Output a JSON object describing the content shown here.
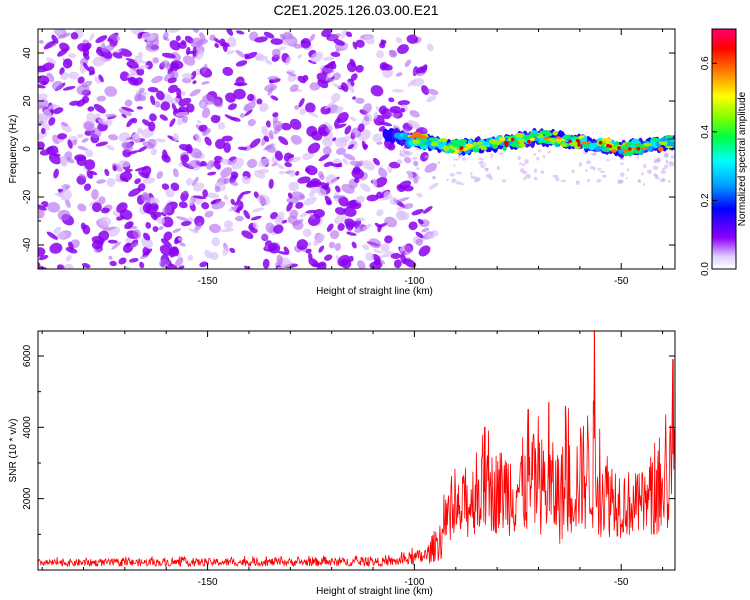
{
  "page": {
    "title": "C2E1.2025.126.03.00.E21"
  },
  "chart_data": [
    {
      "type": "heatmap",
      "title": "C2E1.2025.126.03.00.E21",
      "xlabel": "Height of straight line (km)",
      "ylabel": "Frequency (Hz)",
      "xlim": [
        -191,
        -37
      ],
      "ylim": [
        -50,
        50
      ],
      "xticks": [
        -150,
        -100,
        -50
      ],
      "yticks": [
        -40,
        -20,
        0,
        20,
        40
      ],
      "colorbar": {
        "label": "Normalized spectral amplitude",
        "range": [
          0,
          0.7
        ],
        "ticks": [
          0.0,
          0.2,
          0.4,
          0.6
        ],
        "tick_labels": [
          "0.0",
          "0.2",
          "0.4",
          "0.6"
        ]
      },
      "noise_region": {
        "x": [
          -191,
          -95
        ],
        "freq": [
          -50,
          50
        ],
        "amplitude": 0.1
      },
      "signal_band": {
        "x": [
          -107,
          -37
        ],
        "center_freq": [
          [
            -107,
            6
          ],
          [
            -100,
            4
          ],
          [
            -90,
            1
          ],
          [
            -80,
            2
          ],
          [
            -70,
            5
          ],
          [
            -60,
            3
          ],
          [
            -50,
            0
          ],
          [
            -37,
            3
          ]
        ],
        "half_width_hz": 4,
        "amplitude_range": [
          0.3,
          0.7
        ]
      }
    },
    {
      "type": "line",
      "xlabel": "Height of straight line (km)",
      "ylabel": "SNR (10 * v/v)",
      "xlim": [
        -191,
        -37
      ],
      "ylim": [
        0,
        6700
      ],
      "xticks": [
        -150,
        -100,
        -50
      ],
      "yticks": [
        2000,
        4000,
        6000
      ],
      "series": [
        {
          "name": "SNR",
          "color": "#ff0000",
          "envelope": {
            "x": [
              -191,
              -105,
              -97,
              -93,
              -90,
              -85,
              -80,
              -75,
              -70,
              -65,
              -60,
              -57,
              -55,
              -50,
              -45,
              -40,
              -37
            ],
            "mean": [
              200,
              230,
              400,
              1000,
              1500,
              2100,
              2200,
              2300,
              2400,
              2100,
              2500,
              3000,
              2300,
              1900,
              1800,
              2200,
              3000
            ],
            "spread": [
              100,
              120,
              250,
              700,
              900,
              1100,
              1200,
              1400,
              1400,
              1400,
              1500,
              2000,
              1400,
              1000,
              900,
              1300,
              2000
            ]
          },
          "peaks": [
            [
              -56.5,
              6700
            ],
            [
              -37.5,
              5900
            ],
            [
              -67.5,
              4700
            ],
            [
              -63.5,
              4600
            ],
            [
              -72.5,
              4500
            ],
            [
              -83,
              4000
            ]
          ]
        }
      ]
    }
  ]
}
